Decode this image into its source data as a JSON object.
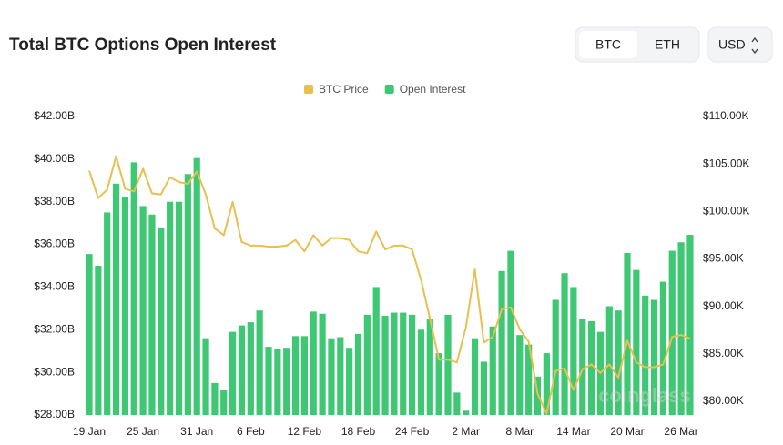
{
  "ui": {
    "tabs": [
      "BTC",
      "ETH"
    ],
    "currency": "USD"
  },
  "chart_data": {
    "type": "bar-line",
    "title": "Total BTC Options Open Interest",
    "watermark": "coinglass",
    "categories": [
      "19 Jan",
      null,
      null,
      null,
      null,
      null,
      "25 Jan",
      null,
      null,
      null,
      null,
      null,
      "31 Jan",
      null,
      null,
      null,
      null,
      null,
      "6 Feb",
      null,
      null,
      null,
      null,
      null,
      "12 Feb",
      null,
      null,
      null,
      null,
      null,
      "18 Feb",
      null,
      null,
      null,
      null,
      null,
      "24 Feb",
      null,
      null,
      null,
      null,
      null,
      "2 Mar",
      null,
      null,
      null,
      null,
      null,
      "8 Mar",
      null,
      null,
      null,
      null,
      null,
      "14 Mar",
      null,
      null,
      null,
      null,
      null,
      "20 Mar",
      null,
      null,
      null,
      null,
      null,
      "26 Mar",
      null
    ],
    "series": [
      {
        "name": "BTC Price",
        "type": "line",
        "axis": "y2",
        "color": "#e9bf4f",
        "values": [
          104.3,
          101.4,
          102.3,
          105.8,
          102.4,
          102.1,
          104.5,
          101.9,
          101.8,
          103.6,
          103.1,
          102.9,
          104.2,
          101.8,
          98.2,
          97.5,
          101.0,
          96.8,
          96.4,
          96.4,
          96.3,
          96.3,
          96.4,
          97.0,
          95.8,
          97.5,
          96.4,
          97.2,
          97.2,
          97.0,
          95.8,
          95.6,
          97.9,
          96.0,
          96.4,
          96.4,
          96.0,
          92.8,
          88.7,
          84.4,
          84.4,
          84.1,
          87.8,
          93.9,
          86.2,
          86.8,
          89.7,
          89.9,
          87.6,
          86.3,
          80.8,
          78.7,
          83.2,
          83.5,
          81.2,
          83.4,
          83.9,
          83.0,
          83.9,
          82.5,
          86.4,
          84.1,
          83.6,
          83.6,
          83.9,
          86.8,
          87.0,
          86.6
        ]
      },
      {
        "name": "Open Interest",
        "type": "bar",
        "color": "#3ec874",
        "values": [
          35.55,
          35.0,
          37.5,
          38.85,
          38.2,
          39.85,
          37.8,
          37.4,
          36.75,
          38.0,
          38.0,
          39.3,
          40.05,
          31.6,
          29.5,
          29.15,
          31.9,
          32.2,
          32.35,
          32.9,
          31.2,
          31.1,
          31.15,
          31.7,
          31.7,
          32.85,
          32.75,
          31.6,
          31.65,
          31.15,
          31.8,
          32.7,
          34.0,
          32.65,
          32.8,
          32.8,
          32.7,
          32.0,
          32.5,
          30.9,
          32.7,
          29.05,
          28.2,
          31.6,
          30.5,
          32.15,
          34.75,
          35.7,
          31.75,
          31.3,
          29.8,
          30.9,
          33.4,
          34.65,
          34.0,
          32.5,
          32.4,
          31.9,
          33.1,
          32.9,
          35.6,
          34.8,
          33.6,
          33.4,
          34.25,
          35.7,
          36.1,
          36.45
        ]
      }
    ],
    "ylim": [
      28,
      42
    ],
    "yticks": [
      {
        "value": 28,
        "label": "$28.00B"
      },
      {
        "value": 30,
        "label": "$30.00B"
      },
      {
        "value": 32,
        "label": "$32.00B"
      },
      {
        "value": 34,
        "label": "$34.00B"
      },
      {
        "value": 36,
        "label": "$36.00B"
      },
      {
        "value": 38,
        "label": "$38.00B"
      },
      {
        "value": 40,
        "label": "$40.00B"
      },
      {
        "value": 42,
        "label": "$42.00B"
      }
    ],
    "y2lim": [
      78.57,
      110
    ],
    "y2ticks": [
      {
        "value": 80,
        "label": "$80.00K"
      },
      {
        "value": 85,
        "label": "$85.00K"
      },
      {
        "value": 90,
        "label": "$90.00K"
      },
      {
        "value": 95,
        "label": "$95.00K"
      },
      {
        "value": 100,
        "label": "$100.00K"
      },
      {
        "value": 105,
        "label": "$105.00K"
      },
      {
        "value": 110,
        "label": "$110.00K"
      }
    ],
    "legend": "top"
  }
}
